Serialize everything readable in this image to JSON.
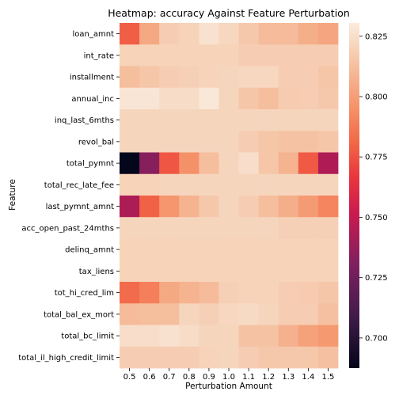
{
  "chart_data": {
    "type": "heatmap",
    "title": "Heatmap: accuracy Against Feature Perturbation",
    "xlabel": "Perturbation Amount",
    "ylabel": "Feature",
    "x": [
      "0.5",
      "0.6",
      "0.7",
      "0.8",
      "0.9",
      "1.0",
      "1.1",
      "1.2",
      "1.3",
      "1.4",
      "1.5"
    ],
    "y": [
      "loan_amnt",
      "int_rate",
      "installment",
      "annual_inc",
      "inq_last_6mths",
      "revol_bal",
      "total_pymnt",
      "total_rec_late_fee",
      "last_pymnt_amnt",
      "acc_open_past_24mths",
      "delinq_amnt",
      "tax_liens",
      "tot_hi_cred_lim",
      "total_bal_ex_mort",
      "total_bc_limit",
      "total_il_high_credit_limit"
    ],
    "values": [
      [
        0.778,
        0.804,
        0.818,
        0.82,
        0.826,
        0.822,
        0.816,
        0.811,
        0.811,
        0.806,
        0.803
      ],
      [
        0.82,
        0.82,
        0.82,
        0.82,
        0.82,
        0.82,
        0.818,
        0.818,
        0.818,
        0.818,
        0.818
      ],
      [
        0.812,
        0.815,
        0.818,
        0.819,
        0.82,
        0.821,
        0.822,
        0.822,
        0.818,
        0.818,
        0.815
      ],
      [
        0.828,
        0.828,
        0.824,
        0.824,
        0.829,
        0.821,
        0.815,
        0.812,
        0.817,
        0.818,
        0.816
      ],
      [
        0.821,
        0.821,
        0.821,
        0.821,
        0.821,
        0.821,
        0.821,
        0.821,
        0.821,
        0.821,
        0.821
      ],
      [
        0.821,
        0.821,
        0.821,
        0.821,
        0.821,
        0.821,
        0.818,
        0.815,
        0.814,
        0.814,
        0.815
      ],
      [
        0.688,
        0.733,
        0.776,
        0.795,
        0.812,
        0.821,
        0.825,
        0.815,
        0.808,
        0.777,
        0.744
      ],
      [
        0.82,
        0.82,
        0.821,
        0.821,
        0.821,
        0.821,
        0.821,
        0.821,
        0.821,
        0.821,
        0.821
      ],
      [
        0.743,
        0.779,
        0.797,
        0.808,
        0.816,
        0.821,
        0.818,
        0.812,
        0.806,
        0.799,
        0.791
      ],
      [
        0.821,
        0.821,
        0.821,
        0.821,
        0.821,
        0.821,
        0.821,
        0.821,
        0.819,
        0.819,
        0.819
      ],
      [
        0.82,
        0.82,
        0.82,
        0.82,
        0.82,
        0.82,
        0.82,
        0.82,
        0.82,
        0.82,
        0.82
      ],
      [
        0.82,
        0.82,
        0.82,
        0.82,
        0.82,
        0.82,
        0.82,
        0.82,
        0.82,
        0.82,
        0.82
      ],
      [
        0.782,
        0.789,
        0.804,
        0.808,
        0.811,
        0.819,
        0.82,
        0.82,
        0.818,
        0.817,
        0.815
      ],
      [
        0.811,
        0.812,
        0.812,
        0.821,
        0.819,
        0.822,
        0.823,
        0.821,
        0.818,
        0.818,
        0.813
      ],
      [
        0.825,
        0.825,
        0.826,
        0.824,
        0.821,
        0.821,
        0.814,
        0.814,
        0.807,
        0.801,
        0.798
      ],
      [
        0.818,
        0.818,
        0.818,
        0.818,
        0.82,
        0.821,
        0.818,
        0.816,
        0.816,
        0.816,
        0.813
      ]
    ],
    "colorbar": {
      "vmin": 0.6875,
      "vmax": 0.8305,
      "ticks": [
        "0.700",
        "0.725",
        "0.750",
        "0.775",
        "0.800",
        "0.825"
      ],
      "colormap": "rocket"
    }
  }
}
